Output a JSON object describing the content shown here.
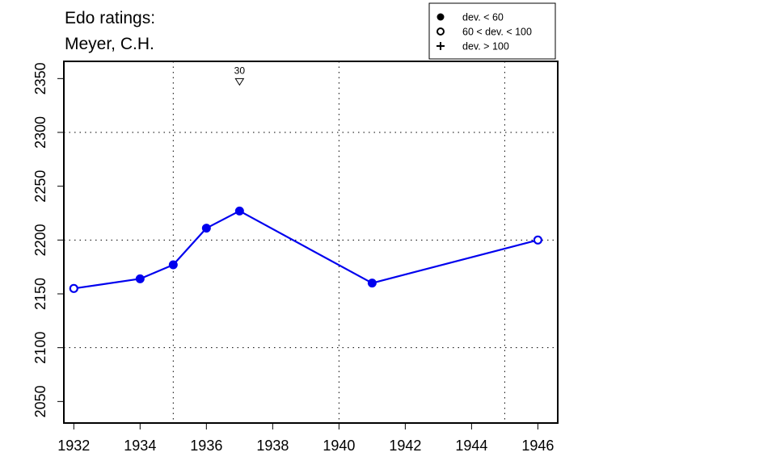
{
  "chart_data": {
    "type": "line",
    "title_lines": [
      "Edo ratings:",
      "Meyer, C.H."
    ],
    "xlabel": "",
    "ylabel": "",
    "xlim": [
      1931.7,
      1946.6
    ],
    "ylim": [
      2030,
      2366
    ],
    "x_ticks": [
      1932,
      1934,
      1936,
      1938,
      1940,
      1942,
      1944,
      1946
    ],
    "y_ticks": [
      2050,
      2100,
      2150,
      2200,
      2250,
      2300,
      2350
    ],
    "x_grid": [
      1935,
      1940,
      1945
    ],
    "y_grid": [
      2100,
      2200,
      2300
    ],
    "grid": true,
    "line_color": "#0000ee",
    "series": [
      {
        "points": [
          {
            "x": 1932,
            "y": 2155,
            "marker": "open"
          },
          {
            "x": 1934,
            "y": 2164,
            "marker": "filled"
          },
          {
            "x": 1935,
            "y": 2177,
            "marker": "filled"
          },
          {
            "x": 1936,
            "y": 2211,
            "marker": "filled"
          },
          {
            "x": 1937,
            "y": 2227,
            "marker": "filled"
          },
          {
            "x": 1941,
            "y": 2160,
            "marker": "filled"
          },
          {
            "x": 1946,
            "y": 2200,
            "marker": "open"
          }
        ]
      }
    ],
    "annotations": [
      {
        "x": 1937,
        "y": 2347,
        "label": "30",
        "marker": "triangle-down"
      }
    ],
    "legend": {
      "placement": "top-right",
      "entries": [
        {
          "marker": "filled",
          "label": "dev. < 60"
        },
        {
          "marker": "open",
          "label": "60 < dev. < 100"
        },
        {
          "marker": "plus",
          "label": "dev. > 100"
        }
      ]
    }
  }
}
